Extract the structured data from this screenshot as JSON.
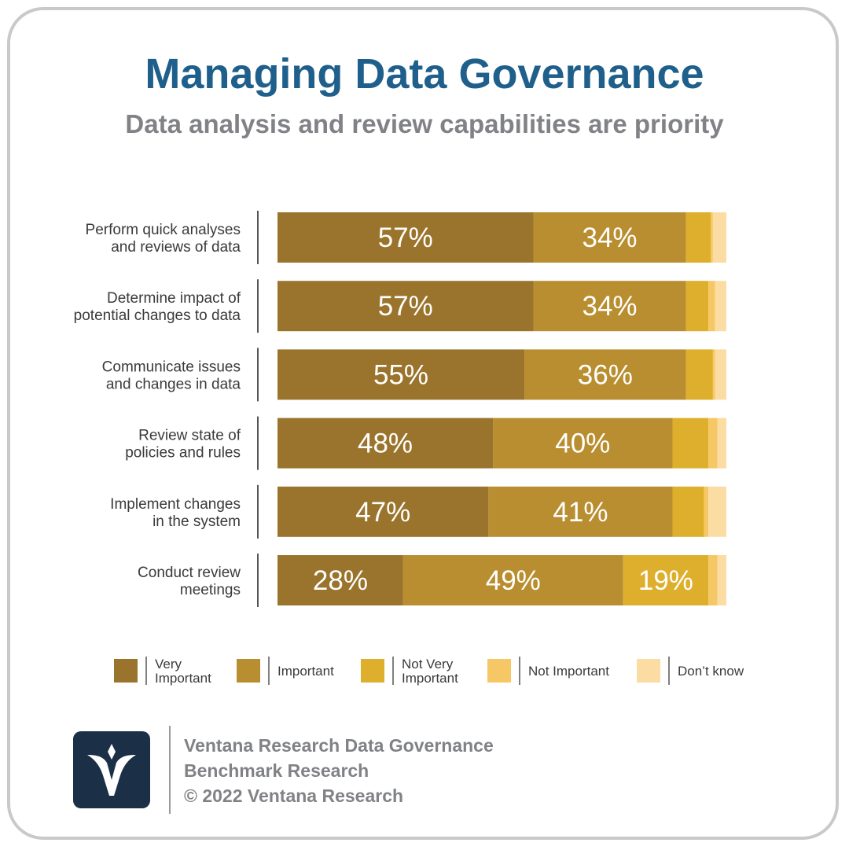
{
  "title": "Managing Data Governance",
  "subtitle": "Data analysis and review capabilities are priority",
  "colors": {
    "very_important": "#9a742c",
    "important": "#b98e30",
    "not_very_important": "#deaf2c",
    "not_important": "#f6c865",
    "dont_know": "#fbdda3",
    "title": "#1f5f8b",
    "logo_bg": "#1b3047"
  },
  "chart_data": {
    "type": "bar",
    "orientation": "horizontal",
    "stacked": true,
    "categories": [
      [
        "Perform quick analyses",
        "and reviews of data"
      ],
      [
        "Determine impact of",
        "potential changes to data"
      ],
      [
        "Communicate issues",
        "and changes in data"
      ],
      [
        "Review state of",
        "policies and rules"
      ],
      [
        "Implement changes",
        "in the system"
      ],
      [
        "Conduct review",
        "meetings"
      ]
    ],
    "series": [
      {
        "name": "Very Important",
        "legend_lines": [
          "Very",
          "Important"
        ],
        "color": "#9a742c",
        "values": [
          57,
          57,
          55,
          48,
          47,
          28
        ]
      },
      {
        "name": "Important",
        "legend_lines": [
          "Important"
        ],
        "color": "#b98e30",
        "values": [
          34,
          34,
          36,
          40,
          41,
          49
        ]
      },
      {
        "name": "Not Very Important",
        "legend_lines": [
          "Not Very",
          "Important"
        ],
        "color": "#deaf2c",
        "values": [
          5.5,
          5,
          6,
          8,
          7,
          19
        ]
      },
      {
        "name": "Not Important",
        "legend_lines": [
          "Not Important"
        ],
        "color": "#f6c865",
        "values": [
          0.5,
          1.5,
          0.5,
          2,
          1,
          2
        ]
      },
      {
        "name": "Don’t know",
        "legend_lines": [
          "Don’t know"
        ],
        "color": "#fbdda3",
        "values": [
          3,
          2.5,
          2.5,
          2,
          4,
          2
        ]
      }
    ],
    "data_labels": [
      [
        "57%",
        "34%",
        "",
        "",
        ""
      ],
      [
        "57%",
        "34%",
        "",
        "",
        ""
      ],
      [
        "55%",
        "36%",
        "",
        "",
        ""
      ],
      [
        "48%",
        "40%",
        "",
        "",
        ""
      ],
      [
        "47%",
        "41%",
        "",
        "",
        ""
      ],
      [
        "28%",
        "49%",
        "19%",
        "",
        ""
      ]
    ],
    "xlim": [
      0,
      100
    ],
    "legend_position": "bottom",
    "grid": false
  },
  "footer": {
    "line1": "Ventana Research Data Governance",
    "line2": "Benchmark Research",
    "line3": "© 2022 Ventana Research"
  }
}
